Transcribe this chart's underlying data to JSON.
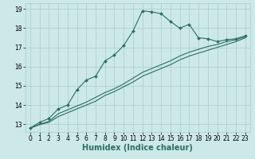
{
  "title": "",
  "xlabel": "Humidex (Indice chaleur)",
  "ylabel": "",
  "background_color": "#cce8e8",
  "grid_color": "#aacccc",
  "line_color": "#2d6e60",
  "x_values": [
    0,
    1,
    2,
    3,
    4,
    5,
    6,
    7,
    8,
    9,
    10,
    11,
    12,
    13,
    14,
    15,
    16,
    17,
    18,
    19,
    20,
    21,
    22,
    23
  ],
  "curve1": [
    12.8,
    13.1,
    13.3,
    13.8,
    14.0,
    14.8,
    15.3,
    15.5,
    16.3,
    16.6,
    17.1,
    17.85,
    18.9,
    18.85,
    18.75,
    18.35,
    18.0,
    18.2,
    17.5,
    17.45,
    17.3,
    17.4,
    17.45,
    17.6
  ],
  "curve2": [
    12.8,
    13.0,
    13.15,
    13.55,
    13.75,
    13.95,
    14.15,
    14.4,
    14.65,
    14.85,
    15.1,
    15.4,
    15.7,
    15.9,
    16.1,
    16.3,
    16.55,
    16.75,
    16.9,
    17.05,
    17.15,
    17.3,
    17.4,
    17.55
  ],
  "curve3": [
    12.8,
    12.98,
    13.1,
    13.4,
    13.6,
    13.8,
    14.0,
    14.2,
    14.5,
    14.7,
    14.95,
    15.2,
    15.5,
    15.7,
    15.9,
    16.1,
    16.35,
    16.55,
    16.7,
    16.85,
    17.0,
    17.15,
    17.3,
    17.5
  ],
  "ylim": [
    12.6,
    19.3
  ],
  "xlim": [
    -0.5,
    23.5
  ],
  "yticks": [
    13,
    14,
    15,
    16,
    17,
    18,
    19
  ],
  "xticks": [
    0,
    1,
    2,
    3,
    4,
    5,
    6,
    7,
    8,
    9,
    10,
    11,
    12,
    13,
    14,
    15,
    16,
    17,
    18,
    19,
    20,
    21,
    22,
    23
  ],
  "xlabel_fontsize": 7,
  "tick_fontsize": 5.5,
  "linewidth": 0.8,
  "markersize": 2.0,
  "marker": "D"
}
